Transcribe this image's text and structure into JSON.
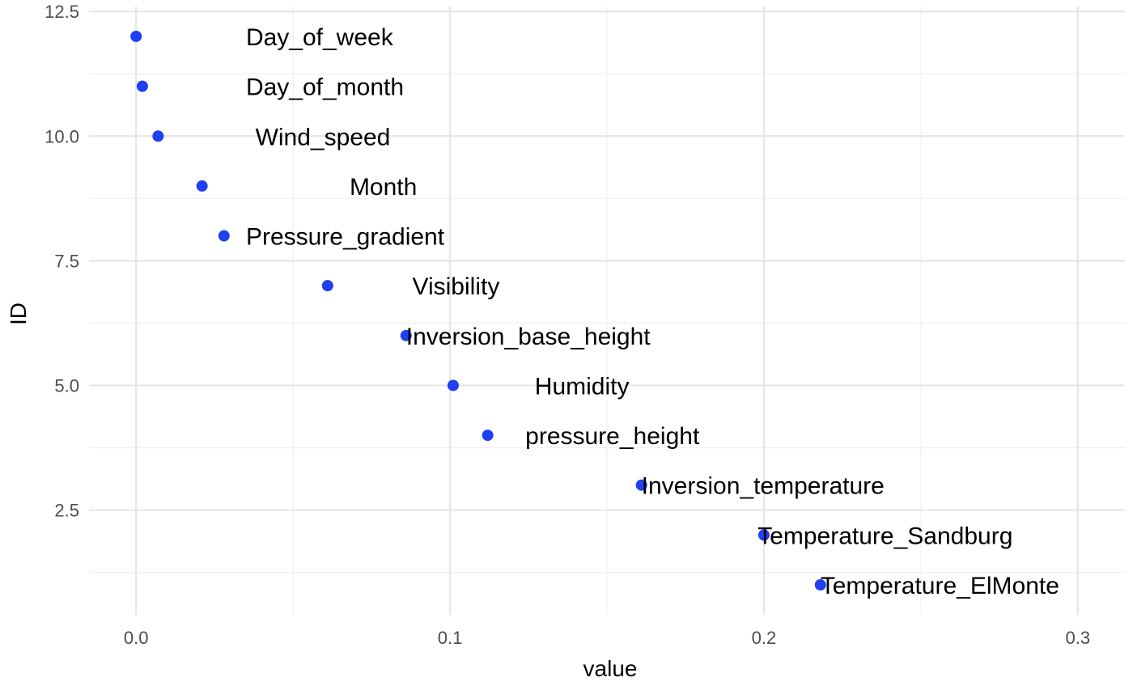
{
  "chart_data": {
    "type": "scatter",
    "title": "",
    "xlabel": "value",
    "ylabel": "ID",
    "xlim": [
      -0.015,
      0.315
    ],
    "ylim": [
      0.4,
      12.6
    ],
    "x_major_ticks": [
      0.0,
      0.1,
      0.2,
      0.3
    ],
    "x_tick_labels": [
      "0.0",
      "0.1",
      "0.2",
      "0.3"
    ],
    "x_minor_ticks": [
      0.05,
      0.15,
      0.25
    ],
    "y_major_ticks": [
      2.5,
      5.0,
      7.5,
      10.0,
      12.5
    ],
    "y_tick_labels": [
      "2.5",
      "5.0",
      "7.5",
      "10.0",
      "12.5"
    ],
    "y_minor_ticks": [
      1.25,
      3.75,
      6.25,
      8.75,
      11.25
    ],
    "grid": true,
    "legend": "none",
    "point_color": "#1f3ff0",
    "points": [
      {
        "label": "Day_of_week",
        "x": 0.0,
        "y": 12,
        "label_x": 0.035
      },
      {
        "label": "Day_of_month",
        "x": 0.002,
        "y": 11,
        "label_x": 0.035
      },
      {
        "label": "Wind_speed",
        "x": 0.007,
        "y": 10,
        "label_x": 0.038
      },
      {
        "label": "Month",
        "x": 0.021,
        "y": 9,
        "label_x": 0.068
      },
      {
        "label": "Pressure_gradient",
        "x": 0.028,
        "y": 8,
        "label_x": 0.035
      },
      {
        "label": "Visibility",
        "x": 0.061,
        "y": 7,
        "label_x": 0.088
      },
      {
        "label": "Inversion_base_height",
        "x": 0.086,
        "y": 6,
        "label_x": 0.086
      },
      {
        "label": "Humidity",
        "x": 0.101,
        "y": 5,
        "label_x": 0.127
      },
      {
        "label": "pressure_height",
        "x": 0.112,
        "y": 4,
        "label_x": 0.124
      },
      {
        "label": "Inversion_temperature",
        "x": 0.161,
        "y": 3,
        "label_x": 0.161
      },
      {
        "label": "Temperature_Sandburg",
        "x": 0.2,
        "y": 2,
        "label_x": 0.198
      },
      {
        "label": "Temperature_ElMonte",
        "x": 0.218,
        "y": 1,
        "label_x": 0.218
      }
    ]
  }
}
